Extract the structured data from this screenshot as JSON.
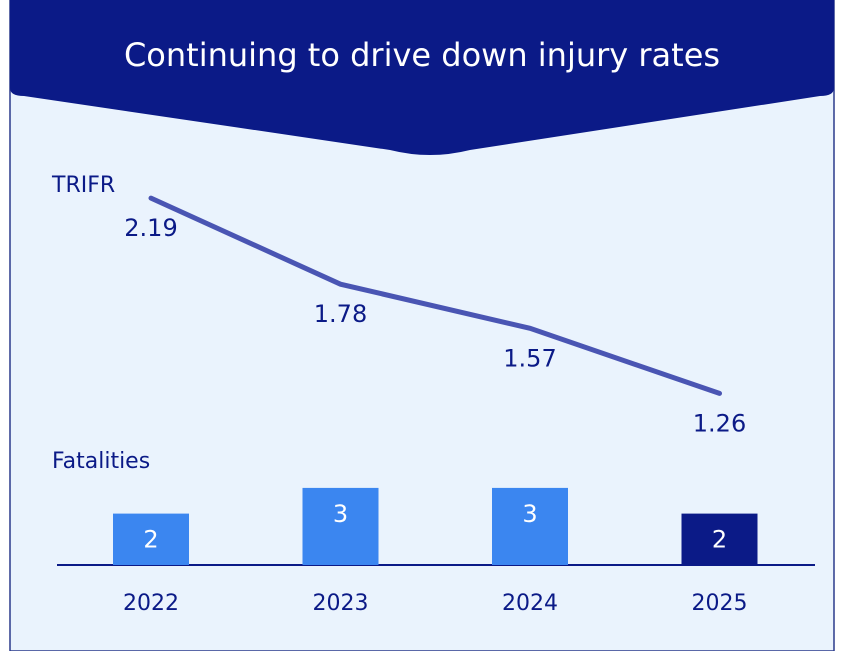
{
  "title": "Continuing to drive down injury rates",
  "chart_data": {
    "type": "combo",
    "categories": [
      "2022",
      "2023",
      "2024",
      "2025"
    ],
    "series": [
      {
        "name": "TRIFR",
        "type": "line",
        "color": "#4a55b3",
        "values": [
          2.19,
          1.78,
          1.57,
          1.26
        ]
      },
      {
        "name": "Fatalities",
        "type": "bar",
        "colors": [
          "#3b86f0",
          "#3b86f0",
          "#3b86f0",
          "#0b1a87"
        ],
        "values": [
          2,
          3,
          3,
          2
        ]
      }
    ]
  }
}
